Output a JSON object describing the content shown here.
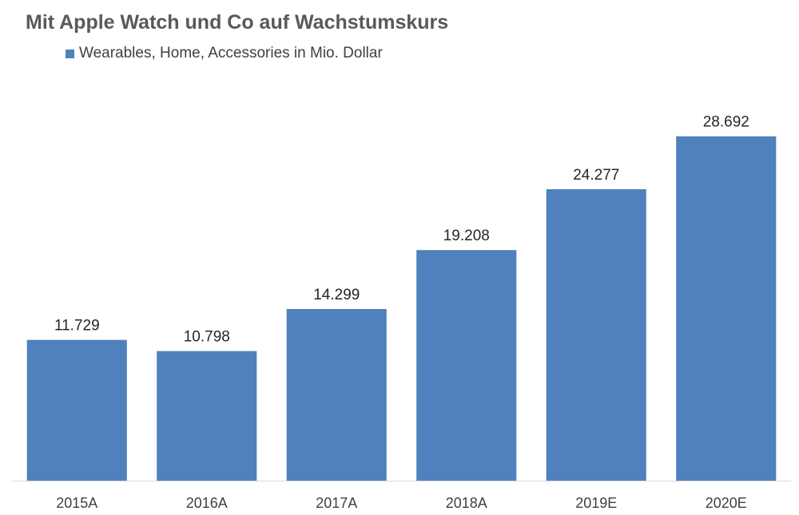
{
  "chart_data": {
    "type": "bar",
    "title": "Mit Apple Watch und Co auf Wachstumskurs",
    "categories": [
      "2015A",
      "2016A",
      "2017A",
      "2018A",
      "2019E",
      "2020E"
    ],
    "series": [
      {
        "name": "Wearables, Home, Accessories in Mio. Dollar",
        "values": [
          11729,
          10798,
          14299,
          19208,
          24277,
          28692
        ],
        "labels": [
          "11.729",
          "10.798",
          "14.299",
          "19.208",
          "24.277",
          "28.692"
        ],
        "color": "#4f81bd"
      }
    ],
    "ylim": [
      0,
      30000
    ],
    "grid": false,
    "legend_position": "top-left"
  }
}
